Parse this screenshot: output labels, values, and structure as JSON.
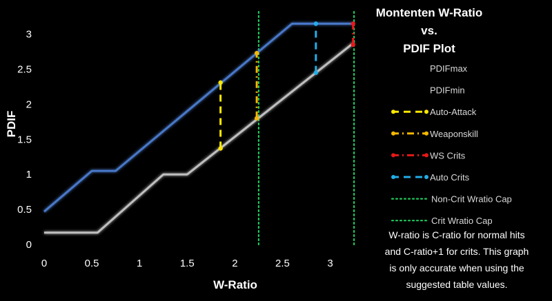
{
  "chart_data": {
    "type": "line",
    "title_lines": [
      "Montenten W-Ratio",
      "vs.",
      "PDIF Plot"
    ],
    "xlabel": "W-Ratio",
    "ylabel": "PDIF",
    "xlim": [
      0,
      3.3
    ],
    "ylim": [
      0,
      3.35
    ],
    "x_ticks": [
      "0",
      "0.5",
      "1",
      "1.5",
      "2",
      "2.5",
      "3"
    ],
    "y_ticks": [
      "0",
      "0.5",
      "1",
      "1.5",
      "2",
      "2.5",
      "3"
    ],
    "grid": false,
    "legend_position": "right",
    "series": [
      {
        "name": "PDIFmax",
        "color": "#4a78c8",
        "style": "solid",
        "x": [
          0,
          0.5,
          0.75,
          2.6,
          3.25
        ],
        "y": [
          0.47,
          1.05,
          1.05,
          3.15,
          3.15
        ]
      },
      {
        "name": "PDIFmin",
        "color": "#bfbfbf",
        "style": "solid",
        "x": [
          0,
          0.56,
          1.25,
          1.5,
          3.25
        ],
        "y": [
          0.17,
          0.17,
          1.0,
          1.0,
          2.88
        ]
      },
      {
        "name": "Auto-Attack",
        "color": "#ffe800",
        "style": "dash",
        "x": [
          1.85,
          1.85
        ],
        "y": [
          1.37,
          2.31
        ]
      },
      {
        "name": "Weaponskill",
        "color": "#f5b800",
        "style": "dashdot",
        "x": [
          2.23,
          2.23
        ],
        "y": [
          1.8,
          2.73
        ]
      },
      {
        "name": "WS Crits",
        "color": "#e81818",
        "style": "dashdot",
        "x": [
          3.24,
          3.24
        ],
        "y": [
          2.85,
          3.15
        ]
      },
      {
        "name": "Auto Crits",
        "color": "#22aee8",
        "style": "dash",
        "x": [
          2.85,
          2.85
        ],
        "y": [
          2.45,
          3.15
        ]
      },
      {
        "name": "Non-Crit Wratio Cap",
        "color": "#1fc85a",
        "style": "dot",
        "x": [
          2.25,
          2.25
        ],
        "y": [
          0,
          3.35
        ]
      },
      {
        "name": "Crit Wratio Cap",
        "color": "#1fc85a",
        "style": "dot",
        "x": [
          3.25,
          3.25
        ],
        "y": [
          0,
          3.35
        ]
      }
    ]
  },
  "note_lines": [
    "W-ratio is C-ratio for normal hits",
    "and C-ratio+1 for crits. This graph",
    "is only accurate when using the",
    "suggested table values."
  ]
}
